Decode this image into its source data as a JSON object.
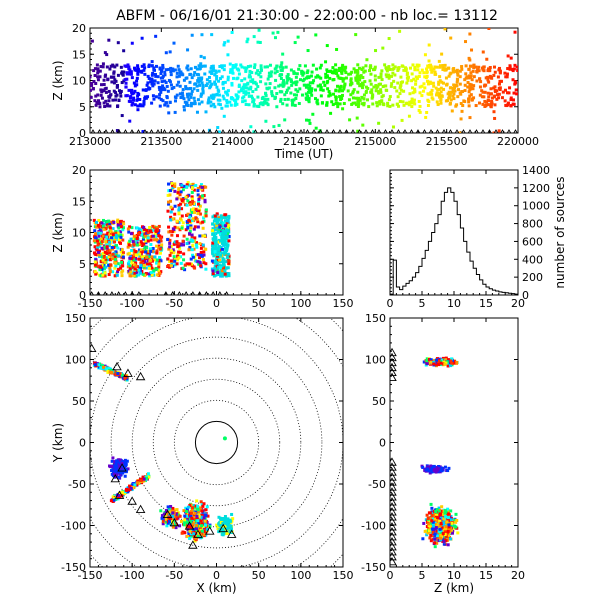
{
  "title": "ABFM - 06/16/01 21:30:00 - 22:00:00 - nb loc.=  13112",
  "colors": {
    "axis": "#000000",
    "background": "#ffffff",
    "triangle": "#000000"
  },
  "chart_data": [
    {
      "id": "time-height",
      "type": "scatter",
      "xlabel": "Time (UT)",
      "ylabel": "Z (km)",
      "xlim": [
        213000,
        220000
      ],
      "ylim": [
        0,
        20
      ],
      "xticks": [
        "213000",
        "213500",
        "214000",
        "214500",
        "215000",
        "215500",
        "220000"
      ],
      "yticks": [
        "0",
        "5",
        "10",
        "15",
        "20"
      ],
      "color_scale": "rainbow by time (purple → red)",
      "bulk_band_z": [
        5,
        13
      ],
      "station_triangles_z": 0
    },
    {
      "id": "xz-projection",
      "type": "scatter",
      "xlabel": "",
      "ylabel": "Z (km)",
      "xlim": [
        -150,
        150
      ],
      "ylim": [
        0,
        20
      ],
      "xticks": [
        "-150",
        "-100",
        "-50",
        "0",
        "50",
        "100",
        "150"
      ],
      "yticks": [
        "0",
        "5",
        "10",
        "15",
        "20"
      ],
      "clusters": [
        {
          "x_range": [
            -145,
            -110
          ],
          "z_range": [
            3,
            12
          ],
          "dominant": "red"
        },
        {
          "x_range": [
            -105,
            -65
          ],
          "z_range": [
            3,
            11
          ],
          "dominant": "red"
        },
        {
          "x_range": [
            -58,
            -12
          ],
          "z_range": [
            4,
            18
          ],
          "dominant": "red"
        },
        {
          "x_range": [
            -5,
            15
          ],
          "z_range": [
            3,
            13
          ],
          "dominant": "cyan"
        }
      ]
    },
    {
      "id": "height-histogram",
      "type": "bar",
      "xlabel": "",
      "ylabel": "number of sources",
      "xlim": [
        0,
        20
      ],
      "ylim": [
        0,
        1400
      ],
      "xticks": [
        "0",
        "5",
        "10",
        "15",
        "20"
      ],
      "yticks": [
        "0",
        "200",
        "400",
        "600",
        "800",
        "1000",
        "1200",
        "1400"
      ],
      "bin_width_km": 0.5,
      "values": [
        10,
        390,
        90,
        60,
        100,
        130,
        160,
        200,
        250,
        320,
        410,
        500,
        600,
        700,
        800,
        900,
        1050,
        1150,
        1200,
        1150,
        1050,
        900,
        750,
        600,
        480,
        380,
        300,
        230,
        170,
        120,
        90,
        70,
        55,
        45,
        35,
        30,
        25,
        20,
        15,
        10
      ]
    },
    {
      "id": "plan-view",
      "type": "scatter",
      "xlabel": "X (km)",
      "ylabel": "Y (km)",
      "xlim": [
        -150,
        150
      ],
      "ylim": [
        -150,
        150
      ],
      "xticks": [
        "-150",
        "-100",
        "-50",
        "0",
        "50",
        "100",
        "150"
      ],
      "yticks": [
        "-150",
        "-100",
        "-50",
        "0",
        "50",
        "100",
        "150"
      ],
      "range_rings_km": [
        25,
        50,
        75,
        100,
        125,
        150,
        175,
        200
      ],
      "clusters": [
        {
          "x": -125,
          "y": 95,
          "dominant": "red"
        },
        {
          "x": -115,
          "y": -30,
          "dominant": "blue"
        },
        {
          "x": -105,
          "y": -70,
          "dominant": "red"
        },
        {
          "x": -55,
          "y": -90,
          "dominant": "red"
        },
        {
          "x": -25,
          "y": -95,
          "dominant": "red"
        },
        {
          "x": 10,
          "y": -100,
          "dominant": "cyan"
        }
      ],
      "stations": [
        [
          -148,
          112
        ],
        [
          -118,
          90
        ],
        [
          -105,
          82
        ],
        [
          -90,
          78
        ],
        [
          -112,
          -32
        ],
        [
          -120,
          -45
        ],
        [
          -115,
          -65
        ],
        [
          -100,
          -72
        ],
        [
          -90,
          -82
        ],
        [
          -58,
          -88
        ],
        [
          -50,
          -98
        ],
        [
          -32,
          -102
        ],
        [
          -22,
          -112
        ],
        [
          -8,
          -108
        ],
        [
          8,
          -105
        ],
        [
          18,
          -112
        ],
        [
          -28,
          -125
        ]
      ]
    },
    {
      "id": "zy-projection",
      "type": "scatter",
      "xlabel": "Z (km)",
      "ylabel": "",
      "xlim": [
        0,
        20
      ],
      "ylim": [
        -150,
        150
      ],
      "xticks": [
        "0",
        "5",
        "10",
        "15",
        "20"
      ],
      "yticks": [
        "-150",
        "-100",
        "-50",
        "0",
        "50",
        "100",
        "150"
      ]
    }
  ]
}
